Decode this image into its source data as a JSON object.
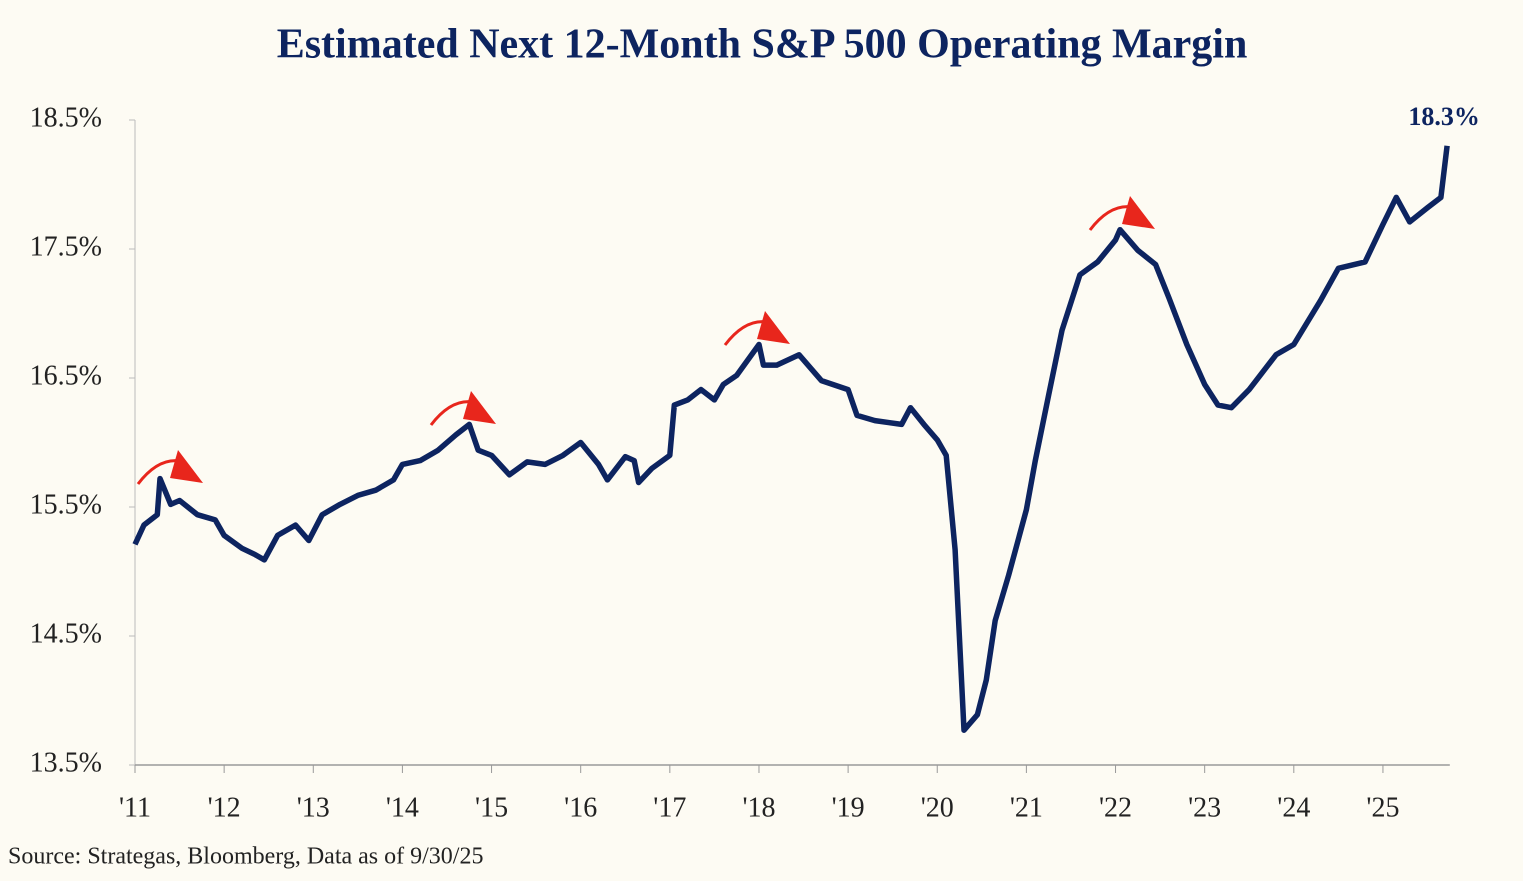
{
  "chart_data": {
    "type": "line",
    "title": "Estimated Next 12-Month S&P 500 Operating Margin",
    "source": "Source: Strategas, Bloomberg, Data as of 9/30/25",
    "annotation": "18.3%",
    "x": [
      2011.0,
      2011.1,
      2011.25,
      2011.28,
      2011.4,
      2011.5,
      2011.7,
      2011.9,
      2012.0,
      2012.2,
      2012.35,
      2012.45,
      2012.6,
      2012.8,
      2012.95,
      2013.1,
      2013.3,
      2013.5,
      2013.7,
      2013.9,
      2014.0,
      2014.2,
      2014.4,
      2014.6,
      2014.75,
      2014.85,
      2015.0,
      2015.2,
      2015.4,
      2015.6,
      2015.8,
      2016.0,
      2016.2,
      2016.3,
      2016.5,
      2016.6,
      2016.65,
      2016.8,
      2017.0,
      2017.05,
      2017.2,
      2017.35,
      2017.5,
      2017.6,
      2017.75,
      2018.0,
      2018.05,
      2018.2,
      2018.45,
      2018.7,
      2019.0,
      2019.1,
      2019.3,
      2019.6,
      2019.7,
      2019.85,
      2020.0,
      2020.1,
      2020.2,
      2020.3,
      2020.45,
      2020.55,
      2020.65,
      2020.8,
      2021.0,
      2021.1,
      2021.25,
      2021.4,
      2021.6,
      2021.8,
      2022.0,
      2022.05,
      2022.25,
      2022.45,
      2022.6,
      2022.8,
      2023.0,
      2023.15,
      2023.3,
      2023.5,
      2023.8,
      2024.0,
      2024.3,
      2024.5,
      2024.8,
      2025.0,
      2025.15,
      2025.3,
      2025.5,
      2025.65,
      2025.72
    ],
    "series": [
      {
        "name": "Operating Margin",
        "color": "#0d2460",
        "values": [
          15.21,
          15.36,
          15.44,
          15.72,
          15.52,
          15.55,
          15.44,
          15.4,
          15.28,
          15.18,
          15.13,
          15.09,
          15.28,
          15.36,
          15.24,
          15.44,
          15.52,
          15.59,
          15.63,
          15.71,
          15.83,
          15.86,
          15.94,
          16.06,
          16.14,
          15.94,
          15.9,
          15.75,
          15.85,
          15.83,
          15.9,
          16.0,
          15.83,
          15.71,
          15.89,
          15.86,
          15.69,
          15.8,
          15.9,
          16.29,
          16.33,
          16.41,
          16.33,
          16.45,
          16.52,
          16.76,
          16.6,
          16.6,
          16.68,
          16.48,
          16.41,
          16.21,
          16.17,
          16.14,
          16.27,
          16.14,
          16.02,
          15.9,
          15.17,
          13.77,
          13.89,
          14.16,
          14.62,
          14.97,
          15.48,
          15.86,
          16.37,
          16.87,
          17.3,
          17.4,
          17.57,
          17.65,
          17.49,
          17.38,
          17.12,
          16.76,
          16.45,
          16.29,
          16.27,
          16.41,
          16.68,
          16.76,
          17.1,
          17.35,
          17.4,
          17.69,
          17.9,
          17.71,
          17.82,
          17.9,
          18.3
        ]
      }
    ],
    "xlim": [
      2011,
      2025.75
    ],
    "xticks": [
      {
        "value": 2011,
        "label": "'11"
      },
      {
        "value": 2012,
        "label": "'12"
      },
      {
        "value": 2013,
        "label": "'13"
      },
      {
        "value": 2014,
        "label": "'14"
      },
      {
        "value": 2015,
        "label": "'15"
      },
      {
        "value": 2016,
        "label": "'16"
      },
      {
        "value": 2017,
        "label": "'17"
      },
      {
        "value": 2018,
        "label": "'18"
      },
      {
        "value": 2019,
        "label": "'19"
      },
      {
        "value": 2020,
        "label": "'20"
      },
      {
        "value": 2021,
        "label": "'21"
      },
      {
        "value": 2022,
        "label": "'22"
      },
      {
        "value": 2023,
        "label": "'23"
      },
      {
        "value": 2024,
        "label": "'24"
      },
      {
        "value": 2025,
        "label": "'25"
      }
    ],
    "ylim": [
      13.5,
      18.5
    ],
    "yticks": [
      {
        "value": 13.5,
        "label": "13.5%"
      },
      {
        "value": 14.5,
        "label": "14.5%"
      },
      {
        "value": 15.5,
        "label": "15.5%"
      },
      {
        "value": 16.5,
        "label": "16.5%"
      },
      {
        "value": 17.5,
        "label": "17.5%"
      },
      {
        "value": 18.5,
        "label": "18.5%"
      }
    ]
  }
}
